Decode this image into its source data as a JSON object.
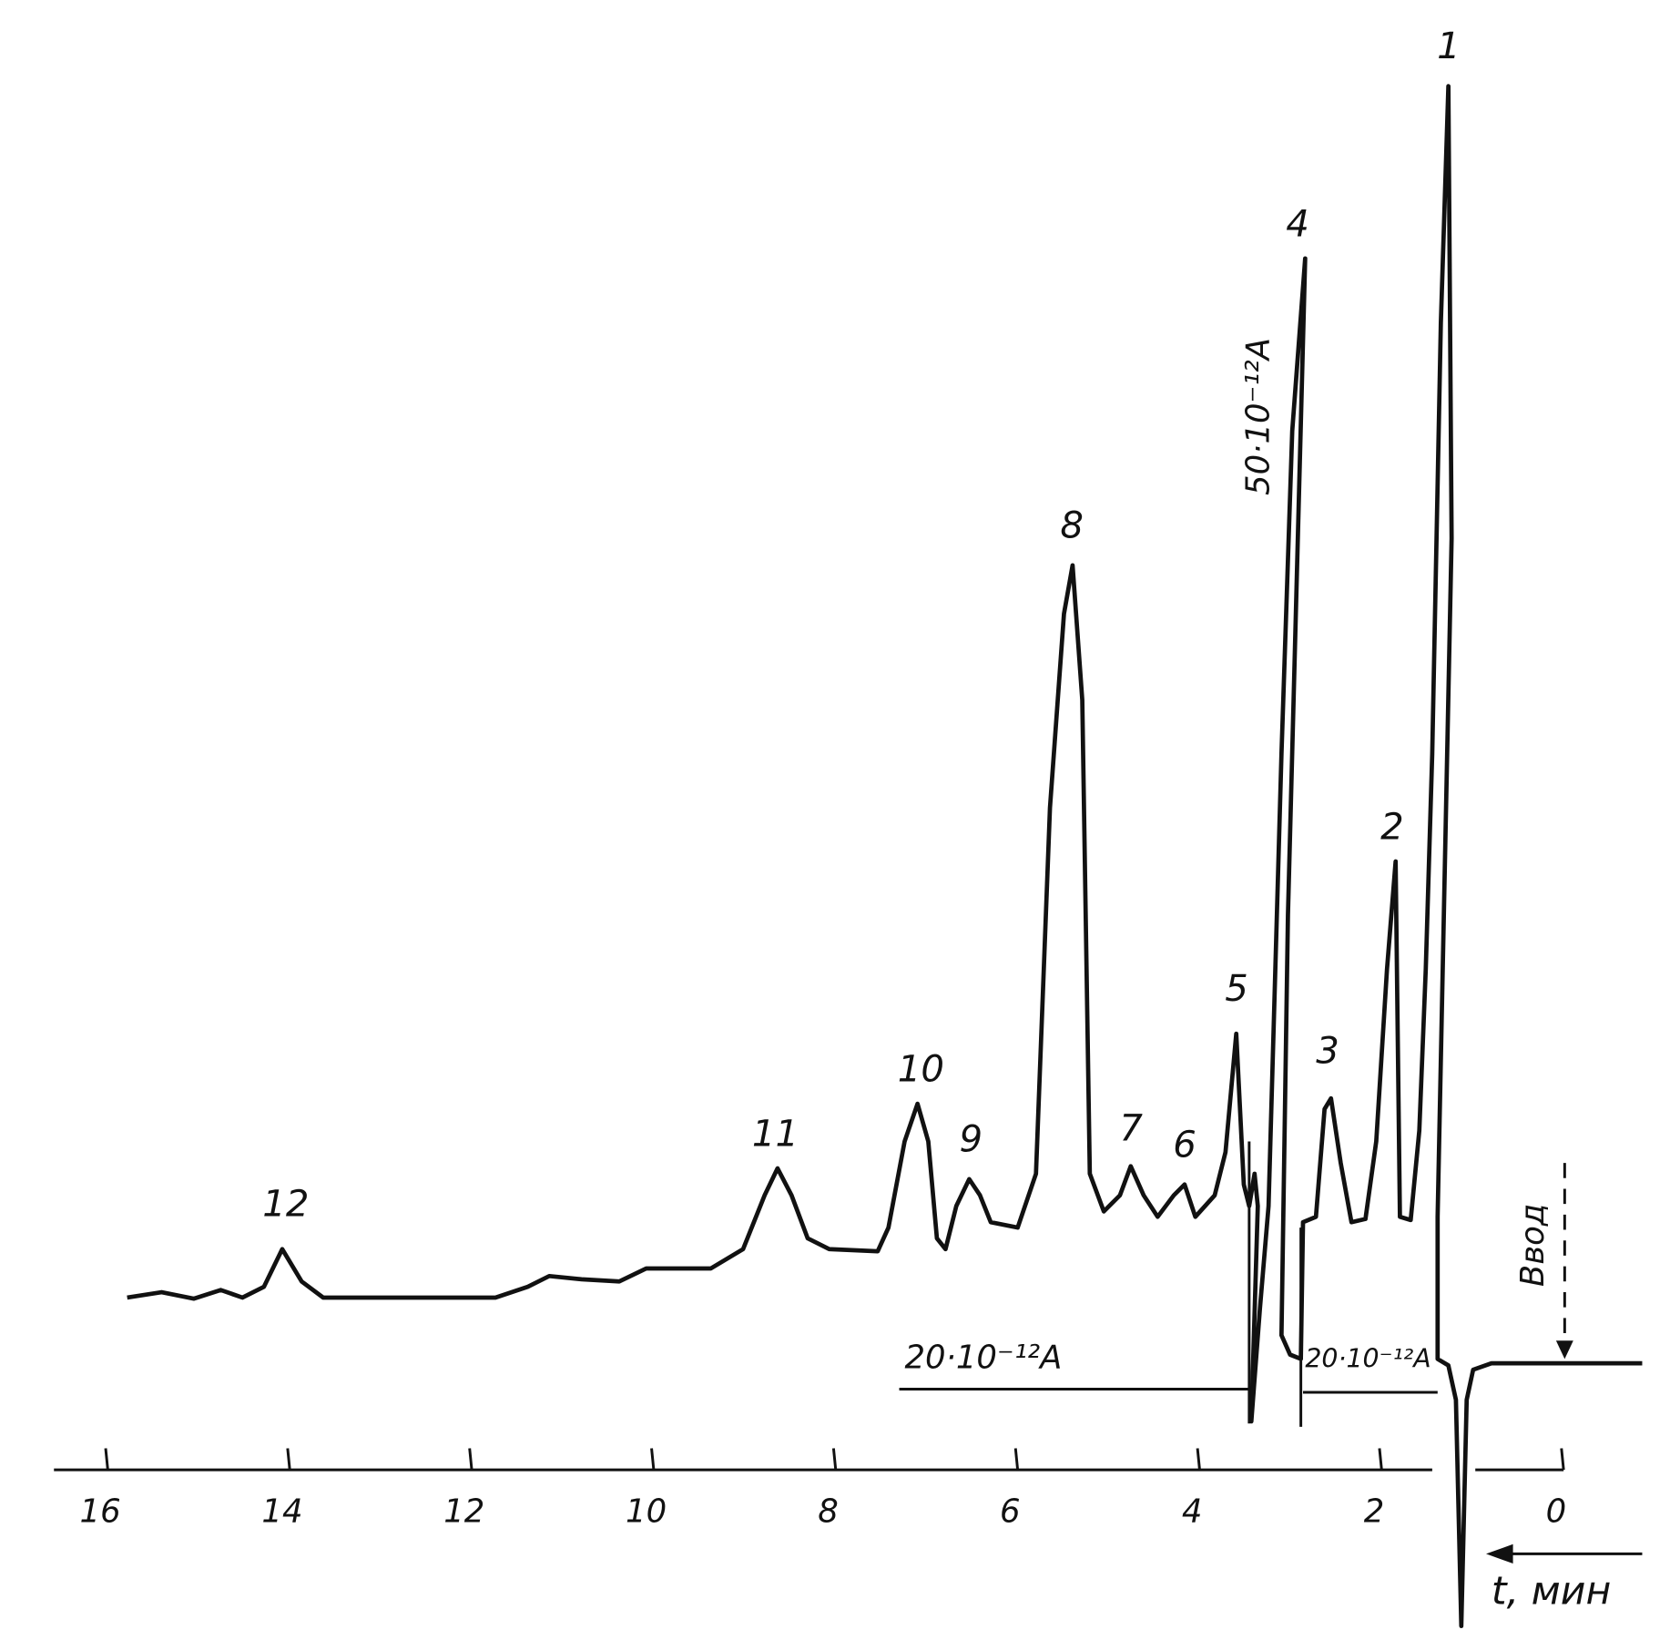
{
  "chart_data": {
    "type": "chromatogram",
    "xlim": [
      16,
      0
    ],
    "xticks": [
      16,
      14,
      12,
      10,
      8,
      6,
      4,
      2,
      0
    ],
    "x_label": "t, мин",
    "peaks": [
      {
        "label": "1",
        "t": 1.24
      },
      {
        "label": "2",
        "t": 1.86
      },
      {
        "label": "3",
        "t": 2.57
      },
      {
        "label": "4",
        "t": 2.9
      },
      {
        "label": "5",
        "t": 3.57
      },
      {
        "label": "6",
        "t": 4.14
      },
      {
        "label": "7",
        "t": 4.73
      },
      {
        "label": "8",
        "t": 5.38
      },
      {
        "label": "9",
        "t": 6.49
      },
      {
        "label": "10",
        "t": 7.04
      },
      {
        "label": "11",
        "t": 8.64
      },
      {
        "label": "12",
        "t": 14.02
      }
    ],
    "annotations": {
      "scale_left": "20·10⁻¹²A",
      "scale_right": "20·10⁻¹²A",
      "scale_peak4": "50·10⁻¹²A",
      "injection": "Ввод"
    }
  }
}
